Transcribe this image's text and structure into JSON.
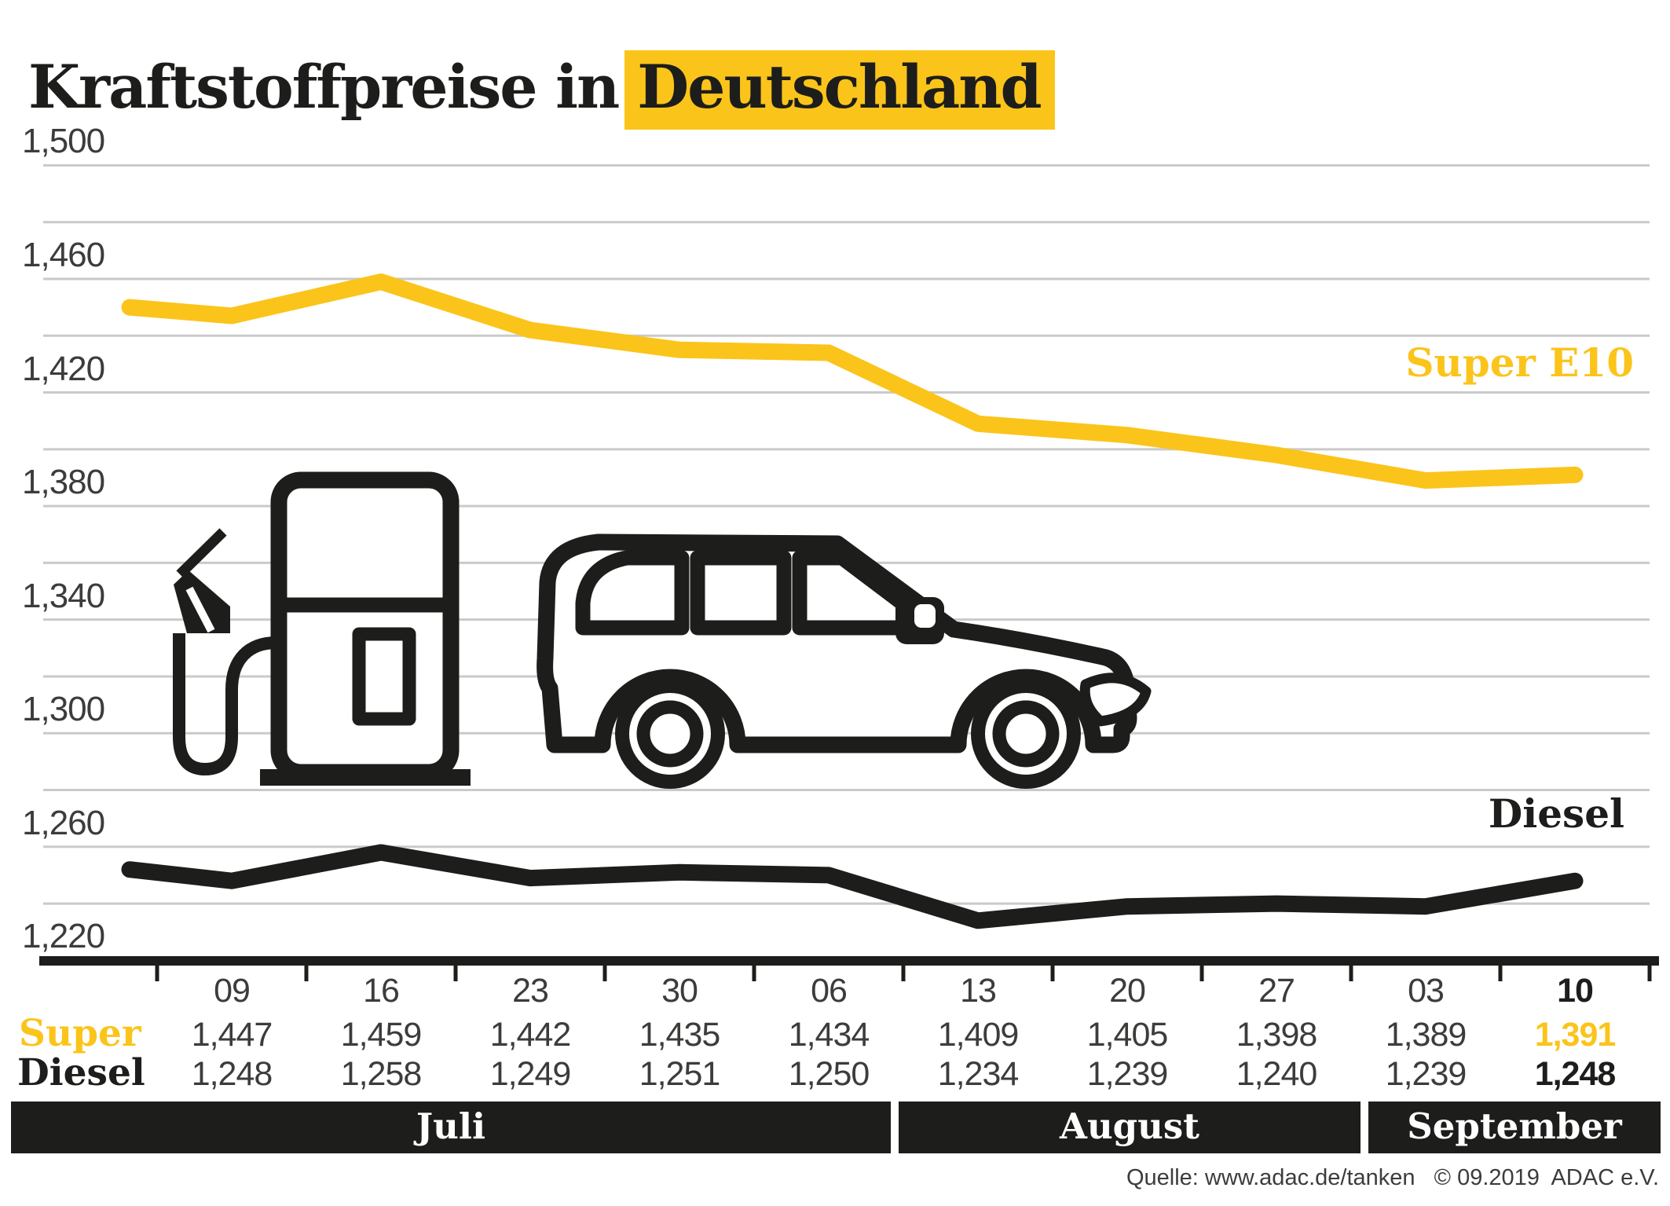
{
  "title": {
    "prefix": "Kraftstoffpreise in",
    "highlight": "Deutschland"
  },
  "colors": {
    "accent_yellow": "#FBC41A",
    "ink": "#1D1D1B",
    "text_gray": "#3C3C3B",
    "gridline": "#CACACA",
    "background": "#FFFFFF"
  },
  "chart_data": {
    "type": "line",
    "categories": [
      "09",
      "16",
      "23",
      "30",
      "06",
      "13",
      "20",
      "27",
      "03",
      "10"
    ],
    "series": [
      {
        "name": "Super E10",
        "color": "#FBC41A",
        "lead_in": 1.45,
        "values": [
          1.447,
          1.459,
          1.442,
          1.435,
          1.434,
          1.409,
          1.405,
          1.398,
          1.389,
          1.391
        ]
      },
      {
        "name": "Diesel",
        "color": "#1D1D1B",
        "lead_in": 1.252,
        "values": [
          1.248,
          1.258,
          1.249,
          1.251,
          1.25,
          1.234,
          1.239,
          1.24,
          1.239,
          1.248
        ]
      }
    ],
    "ylim": [
      1.22,
      1.5
    ],
    "y_gridline_step": 0.02,
    "y_label_step": 0.04,
    "grid": true,
    "legend_position": "inline-right",
    "months": [
      "Juli",
      "August",
      "September"
    ]
  },
  "y_axis_labels": [
    "1,500",
    "1,460",
    "1,420",
    "1,380",
    "1,340",
    "1,300",
    "1,260",
    "1,220"
  ],
  "series_labels": {
    "super": "Super E10",
    "diesel": "Diesel"
  },
  "table": {
    "row_labels": [
      "Super",
      "Diesel"
    ],
    "dates": [
      "09",
      "16",
      "23",
      "30",
      "06",
      "13",
      "20",
      "27",
      "03",
      "10"
    ],
    "super_values": [
      "1,447",
      "1,459",
      "1,442",
      "1,435",
      "1,434",
      "1,409",
      "1,405",
      "1,398",
      "1,389",
      "1,391"
    ],
    "diesel_values": [
      "1,248",
      "1,258",
      "1,249",
      "1,251",
      "1,250",
      "1,234",
      "1,239",
      "1,240",
      "1,239",
      "1,248"
    ],
    "emphasized_column": 9
  },
  "months": [
    {
      "label": "Juli"
    },
    {
      "label": "August"
    },
    {
      "label": "September"
    }
  ],
  "source": "Quelle: www.adac.de/tanken   © 09.2019  ADAC e.V."
}
